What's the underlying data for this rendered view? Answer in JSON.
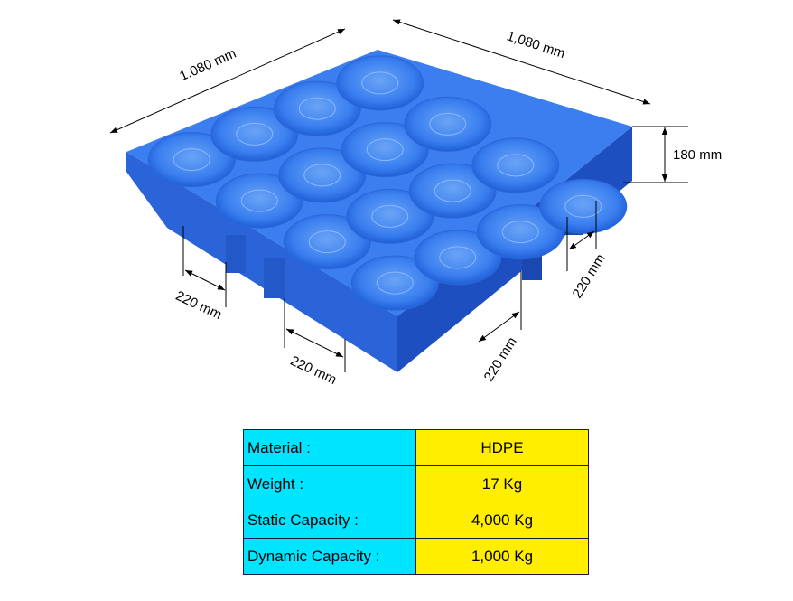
{
  "dimensions": {
    "length": "1,080 mm",
    "width": "1,080 mm",
    "height": "180 mm",
    "gaps": [
      "220 mm",
      "220 mm",
      "220 mm",
      "220 mm"
    ]
  },
  "table": {
    "rows": [
      [
        "Material :",
        "HDPE"
      ],
      [
        "Weight :",
        "17 Kg"
      ],
      [
        "Static Capacity :",
        "4,000 Kg"
      ],
      [
        "Dynamic Capacity :",
        "1,000 Kg"
      ]
    ]
  }
}
